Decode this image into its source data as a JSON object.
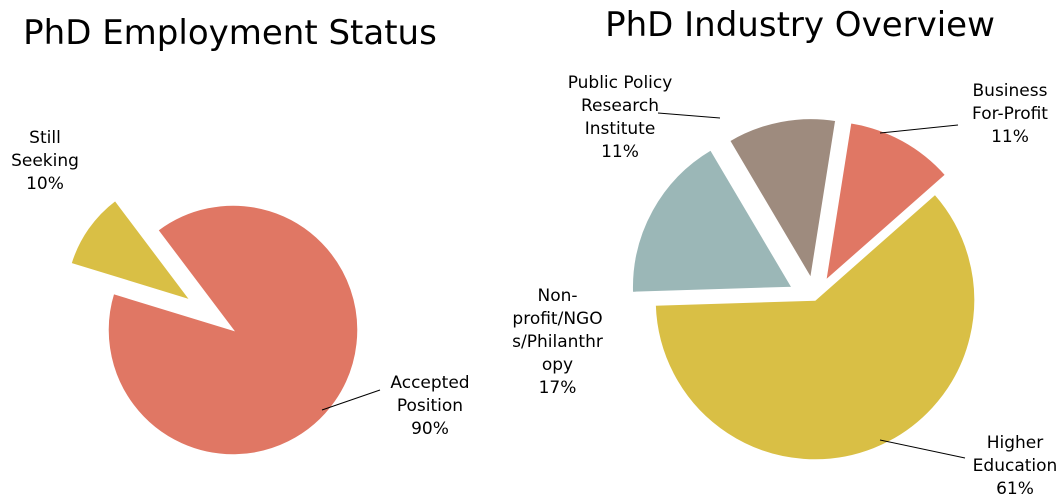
{
  "chart_data": [
    {
      "type": "pie",
      "title": "PhD Employment Status",
      "categories": [
        "Still Seeking",
        "Accepted Position"
      ],
      "values": [
        10,
        90
      ],
      "value_labels": [
        "10%",
        "90%"
      ],
      "colors": [
        "#d9bf45",
        "#e07764"
      ]
    },
    {
      "type": "pie",
      "title": "PhD Industry Overview",
      "categories": [
        "Business For-Profit",
        "Higher Education",
        "Non-profit/NGOs/Philanthropy",
        "Public Policy Research Institute"
      ],
      "values": [
        11,
        61,
        17,
        11
      ],
      "value_labels": [
        "11%",
        "61%",
        "17%",
        "11%"
      ],
      "colors": [
        "#e07764",
        "#d9bf45",
        "#9bb7b7",
        "#9e8b7e"
      ]
    }
  ]
}
